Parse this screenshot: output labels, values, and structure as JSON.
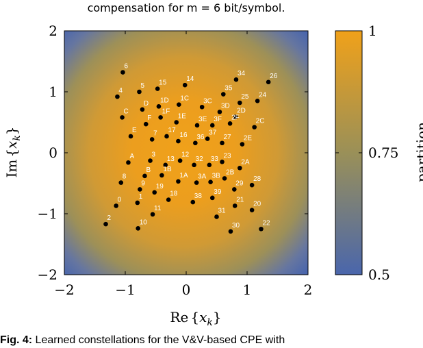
{
  "chart_data": {
    "type": "scatter",
    "title": "compensation for m = 6 bit/symbol.",
    "xlabel": "Re{x_k}",
    "ylabel": "Im{x_k}",
    "xlim": [
      -2,
      2
    ],
    "ylim": [
      -2,
      2
    ],
    "xticks": [
      "−2",
      "−1",
      "0",
      "1",
      "2"
    ],
    "yticks": [
      "−2",
      "−1",
      "0",
      "1",
      "2"
    ],
    "background": "radial gradient: orange (1) at center to blue (0.5) at corners",
    "colorbar": {
      "label": "partition",
      "range": [
        0.5,
        1
      ],
      "ticks": [
        "0.5",
        "0.75",
        "1"
      ],
      "colors": {
        "low": "#4a66ac",
        "mid": "#9a9058",
        "high": "#f0a11a"
      }
    },
    "points": [
      {
        "label": "6",
        "x": -1.04,
        "y": 1.32
      },
      {
        "label": "5",
        "x": -0.77,
        "y": 1.0
      },
      {
        "label": "15",
        "x": -0.47,
        "y": 1.05
      },
      {
        "label": "14",
        "x": -0.02,
        "y": 1.11
      },
      {
        "label": "34",
        "x": 0.82,
        "y": 1.2
      },
      {
        "label": "26",
        "x": 1.35,
        "y": 1.16
      },
      {
        "label": "4",
        "x": -1.13,
        "y": 0.92
      },
      {
        "label": "35",
        "x": 0.61,
        "y": 0.96
      },
      {
        "label": "24",
        "x": 1.17,
        "y": 0.85
      },
      {
        "label": "1C",
        "x": -0.12,
        "y": 0.79
      },
      {
        "label": "1D",
        "x": -0.45,
        "y": 0.76
      },
      {
        "label": "D",
        "x": -0.72,
        "y": 0.71
      },
      {
        "label": "3C",
        "x": 0.26,
        "y": 0.75
      },
      {
        "label": "25",
        "x": 0.88,
        "y": 0.82
      },
      {
        "label": "3D",
        "x": 0.55,
        "y": 0.67
      },
      {
        "label": "C",
        "x": -1.05,
        "y": 0.58
      },
      {
        "label": "1F",
        "x": -0.42,
        "y": 0.58
      },
      {
        "label": "1E",
        "x": -0.16,
        "y": 0.5
      },
      {
        "label": "F",
        "x": -0.66,
        "y": 0.47
      },
      {
        "label": "2D",
        "x": 0.81,
        "y": 0.59
      },
      {
        "label": "3E",
        "x": 0.18,
        "y": 0.45
      },
      {
        "label": "3F",
        "x": 0.43,
        "y": 0.45
      },
      {
        "label": "2F",
        "x": 0.72,
        "y": 0.48
      },
      {
        "label": "2C",
        "x": 1.12,
        "y": 0.42
      },
      {
        "label": "E",
        "x": -0.91,
        "y": 0.27
      },
      {
        "label": "7",
        "x": -0.56,
        "y": 0.22
      },
      {
        "label": "17",
        "x": -0.32,
        "y": 0.27
      },
      {
        "label": "16",
        "x": -0.13,
        "y": 0.19
      },
      {
        "label": "36",
        "x": 0.15,
        "y": 0.16
      },
      {
        "label": "37",
        "x": 0.35,
        "y": 0.23
      },
      {
        "label": "27",
        "x": 0.59,
        "y": 0.16
      },
      {
        "label": "2E",
        "x": 0.92,
        "y": 0.14
      },
      {
        "label": "A",
        "x": -0.95,
        "y": -0.16
      },
      {
        "label": "3",
        "x": -0.59,
        "y": -0.13
      },
      {
        "label": "13",
        "x": -0.34,
        "y": -0.2
      },
      {
        "label": "12",
        "x": -0.1,
        "y": -0.13
      },
      {
        "label": "32",
        "x": 0.13,
        "y": -0.2
      },
      {
        "label": "33",
        "x": 0.38,
        "y": -0.2
      },
      {
        "label": "23",
        "x": 0.59,
        "y": -0.15
      },
      {
        "label": "2A",
        "x": 0.88,
        "y": -0.25
      },
      {
        "label": "8",
        "x": -1.07,
        "y": -0.49
      },
      {
        "label": "B",
        "x": -0.68,
        "y": -0.38
      },
      {
        "label": "1B",
        "x": -0.4,
        "y": -0.37
      },
      {
        "label": "1A",
        "x": -0.13,
        "y": -0.47
      },
      {
        "label": "3A",
        "x": 0.17,
        "y": -0.49
      },
      {
        "label": "3B",
        "x": 0.4,
        "y": -0.48
      },
      {
        "label": "2B",
        "x": 0.63,
        "y": -0.42
      },
      {
        "label": "28",
        "x": 1.08,
        "y": -0.53
      },
      {
        "label": "9",
        "x": -0.76,
        "y": -0.6
      },
      {
        "label": "19",
        "x": -0.52,
        "y": -0.65
      },
      {
        "label": "18",
        "x": -0.29,
        "y": -0.77
      },
      {
        "label": "29",
        "x": 0.79,
        "y": -0.6
      },
      {
        "label": "38",
        "x": 0.11,
        "y": -0.81
      },
      {
        "label": "39",
        "x": 0.43,
        "y": -0.74
      },
      {
        "label": "0",
        "x": -1.15,
        "y": -0.87
      },
      {
        "label": "1",
        "x": -0.8,
        "y": -0.82
      },
      {
        "label": "21",
        "x": 0.8,
        "y": -0.87
      },
      {
        "label": "20",
        "x": 1.08,
        "y": -0.94
      },
      {
        "label": "11",
        "x": -0.55,
        "y": -1.01
      },
      {
        "label": "31",
        "x": 0.5,
        "y": -1.05
      },
      {
        "label": "2",
        "x": -1.32,
        "y": -1.17
      },
      {
        "label": "10",
        "x": -0.79,
        "y": -1.24
      },
      {
        "label": "30",
        "x": 0.73,
        "y": -1.29
      },
      {
        "label": "22",
        "x": 1.23,
        "y": -1.25
      }
    ]
  },
  "caption": {
    "prefix": "Fig. 4:",
    "text": " Learned constellations for the V&V-based CPE with"
  }
}
